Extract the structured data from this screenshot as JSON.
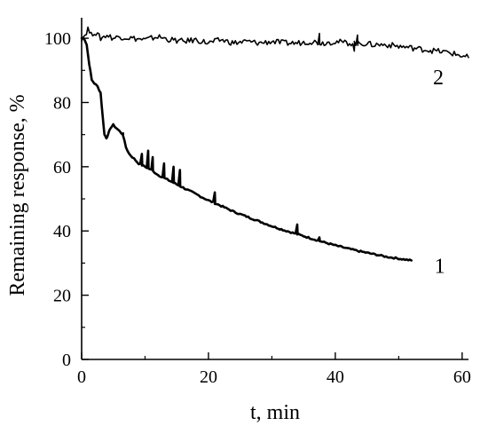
{
  "chart_data": {
    "type": "line",
    "xlabel": "t, min",
    "ylabel": "Remaining response, %",
    "xlim": [
      0,
      61
    ],
    "ylim": [
      0,
      105
    ],
    "x_ticks": [
      0,
      20,
      40,
      60
    ],
    "y_ticks": [
      0,
      20,
      40,
      60,
      80,
      100
    ],
    "x_minor_ticks": [
      10,
      30,
      50
    ],
    "y_minor_ticks": [
      10,
      30,
      50,
      70,
      90
    ],
    "grid": false,
    "legend": "none",
    "line_color": "#000000",
    "series": [
      {
        "curve_label": "1",
        "x": [
          0,
          0.4,
          0.8,
          1.2,
          1.6,
          2.0,
          2.5,
          3.0,
          3.3,
          3.6,
          3.9,
          4.2,
          4.5,
          5.0,
          5.5,
          6.0,
          6.5,
          7.0,
          7.5,
          8,
          9,
          10,
          11,
          12,
          13,
          14,
          15,
          16,
          18,
          20,
          22,
          24,
          26,
          28,
          30,
          32,
          34,
          36,
          38,
          40,
          42,
          44,
          46,
          48,
          50,
          52
        ],
        "y": [
          100,
          100,
          98,
          92,
          87,
          86,
          85,
          83,
          76,
          70,
          69,
          70,
          72,
          73,
          72,
          71,
          70,
          66,
          64,
          63,
          61,
          60,
          59,
          57.5,
          56.5,
          55.5,
          54.5,
          53.5,
          51.5,
          49.5,
          47.8,
          46,
          44.5,
          43,
          41.5,
          40.2,
          39,
          37.8,
          36.6,
          35.5,
          34.5,
          33.6,
          32.8,
          32,
          31.4,
          30.8
        ],
        "spikes": [
          {
            "x": 6.5,
            "y": 70
          },
          {
            "x": 9.5,
            "y": 64
          },
          {
            "x": 10.5,
            "y": 65
          },
          {
            "x": 11.2,
            "y": 63
          },
          {
            "x": 13,
            "y": 61
          },
          {
            "x": 14.5,
            "y": 60
          },
          {
            "x": 15.5,
            "y": 59
          },
          {
            "x": 21,
            "y": 52
          },
          {
            "x": 34,
            "y": 42
          },
          {
            "x": 37.5,
            "y": 38
          }
        ]
      },
      {
        "curve_label": "2",
        "x": [
          0,
          0.5,
          1,
          1.5,
          2,
          3,
          4,
          5,
          6,
          8,
          10,
          12,
          14,
          16,
          18,
          20,
          22,
          24,
          26,
          28,
          30,
          32,
          34,
          36,
          38,
          40,
          42,
          44,
          46,
          48,
          50,
          52,
          54,
          56,
          58,
          60,
          61
        ],
        "y": [
          100,
          101,
          103,
          101,
          102,
          100,
          101,
          100,
          100.5,
          100,
          99.5,
          100.5,
          99.5,
          99,
          99.5,
          98.5,
          99.5,
          98.5,
          99,
          98.5,
          99,
          98.5,
          98.5,
          99,
          98.5,
          99,
          98.5,
          98.5,
          98,
          98,
          97.5,
          97,
          96.5,
          96,
          95.5,
          94.5,
          94
        ],
        "spikes": [
          {
            "x": 37.5,
            "y": 101.5
          },
          {
            "x": 43,
            "y": 96
          },
          {
            "x": 43.5,
            "y": 101
          }
        ]
      }
    ]
  }
}
